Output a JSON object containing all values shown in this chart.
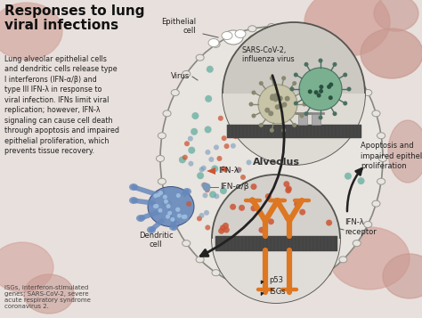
{
  "title": "Responses to lung\nviral infections",
  "title_fontsize": 11,
  "body_text": "Lung alveolar epithelial cells\nand dendritic cells release type\nI interferons (IFN-α/β) and\ntype III IFN-λ in response to\nviral infection. IFNs limit viral\nreplication; however, IFN-λ\nsignaling can cause cell death\nthrough apoptosis and impaired\nepithelial proliferation, which\nprevents tissue recovery.",
  "body_fontsize": 5.8,
  "footnote": "ISGs, interferon-stimulated\ngenes; SARS-CoV-2, severe\nacute respiratory syndrome\ncoronavirus 2.",
  "footnote_fontsize": 5.0,
  "bg_color": "#e8e0dc",
  "label_epithelial": "Epithelial\ncell",
  "label_virus": "Virus",
  "label_sars": "SARS-CoV-2,\ninfluenza virus",
  "label_alveolus": "Alveolus",
  "label_dendritic": "Dendritic\ncell",
  "label_ifn_lambda": "IFN-λ",
  "label_ifn_alpha": "IFN-α/β",
  "label_ifn_receptor": "IFN-λ\nreceptor",
  "label_p53": "p53",
  "label_isgs": "ISGs",
  "label_apoptosis": "Apoptosis and\nimpaired epithelial\nproliferation",
  "teal_color": "#5aaa99",
  "orange_color": "#cc5533",
  "blue_color": "#7799bb",
  "dendritic_color": "#6688bb",
  "receptor_color": "#dd7722",
  "arrow_color": "#222222",
  "membrane_color": "#444444",
  "alveolus_fill": "#ddd8d0",
  "alveolus_border": "#aaa098",
  "virus_circle_fill": "#ccc8c0",
  "receptor_circle_fill": "#d8d4cc"
}
